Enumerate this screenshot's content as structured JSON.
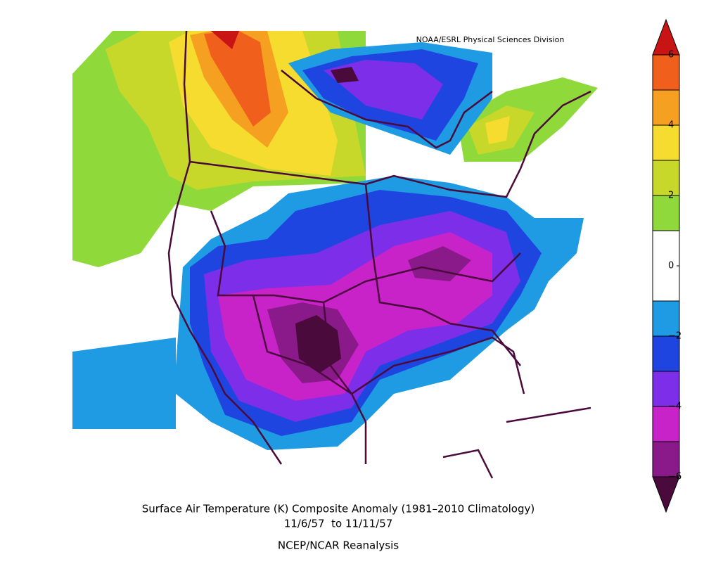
{
  "credit": "NOAA/ESRL Physical Sciences Division",
  "title": "Surface Air Temperature (K) Composite Anomaly (1981–2010 Climatology)",
  "subtitle": "11/6/57  to 11/11/57",
  "source": "NCEP/NCAR Reanalysis",
  "colorbar": {
    "lim": [
      -7,
      7
    ],
    "levels": [
      -6,
      -5,
      -4,
      -3,
      -2,
      -1,
      1,
      2,
      3,
      4,
      5,
      6
    ],
    "colors": [
      "#4a0a3c",
      "#8a1a8a",
      "#c823c8",
      "#7d2ee8",
      "#1f45e0",
      "#1e9be2",
      "#ffffff",
      "#8fd93a",
      "#c8d82a",
      "#f5dc2e",
      "#f5a020",
      "#f0601c",
      "#c81414"
    ],
    "ticks": [
      {
        "value": -6,
        "label": "−6"
      },
      {
        "value": -4,
        "label": "−4"
      },
      {
        "value": -2,
        "label": "−2"
      },
      0,
      2,
      4,
      6
    ]
  }
}
